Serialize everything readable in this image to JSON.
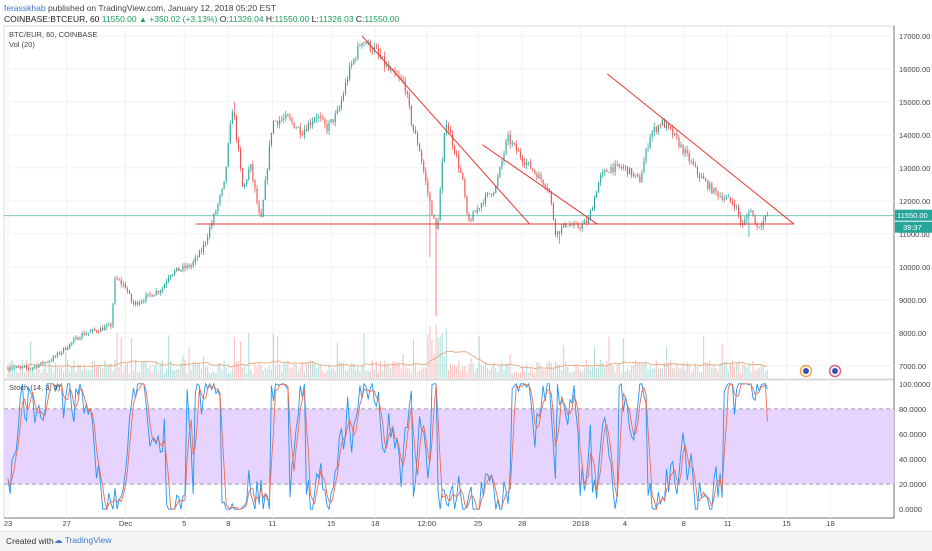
{
  "header": {
    "author": "ferasskhab",
    "published": " published on TradingView.com, January 12, 2018 05:20 EST",
    "symbol_line": "COINBASE:BTCEUR, 60",
    "last": "11550.00",
    "change": "+350.02 (+3.13%)",
    "open_label": "O:",
    "open": "11326.04",
    "high_label": "H:",
    "high": "11550.00",
    "low_label": "L:",
    "low": "11326.03",
    "close_label": "C:",
    "close": "11550.00"
  },
  "pane_labels": {
    "symbol": "BTC/EUR, 60, COINBASE",
    "volume": "Vol (20)",
    "stoch": "Stoch (14, 3, 3)"
  },
  "price_tags": {
    "last": "11550.00",
    "countdown": "39:37"
  },
  "footer": {
    "created_with": "Created with",
    "brand": "TradingView"
  },
  "colors": {
    "up": "#26a69a",
    "down": "#ef5350",
    "trendline": "#e53935",
    "lastline": "#26a69a",
    "stoch_k": "#2196f3",
    "stoch_d": "#ef6c4f",
    "stoch_band": "#e6d3ff",
    "volume_ma": "#e8a87c"
  },
  "chart_data": [
    {
      "type": "candlestick",
      "title": "BTC/EUR, 60, COINBASE",
      "ylim": [
        6600,
        17300
      ],
      "yticks": [
        7000,
        8000,
        9000,
        10000,
        11000,
        12000,
        13000,
        14000,
        15000,
        16000,
        17000
      ],
      "ytick_labels": [
        "7000.00",
        "8000.00",
        "9000.00",
        "10000.00",
        "11000.00",
        "12000.00",
        "13000.00",
        "14000.00",
        "15000.00",
        "16000.00",
        "17000.00"
      ],
      "xtick_labels": [
        "23",
        "27",
        "Dec",
        "5",
        "8",
        "11",
        "15",
        "18",
        "12:00",
        "25",
        "28",
        "2018",
        "4",
        "8",
        "11",
        "15",
        "18"
      ],
      "xticks_day": [
        0,
        4,
        8,
        12,
        15,
        18,
        22,
        25,
        28.5,
        32,
        35,
        39,
        42,
        46,
        49,
        53,
        56
      ],
      "xlim_day": [
        0,
        59.5
      ],
      "last_price": 11550,
      "anchors": [
        [
          0,
          6950
        ],
        [
          1.5,
          6920
        ],
        [
          3,
          7200
        ],
        [
          5,
          7950
        ],
        [
          7,
          8200
        ],
        [
          7.3,
          9650
        ],
        [
          8,
          9400
        ],
        [
          8.5,
          8850
        ],
        [
          10.5,
          9350
        ],
        [
          11,
          9800
        ],
        [
          12.5,
          10050
        ],
        [
          13.2,
          10500
        ],
        [
          14,
          11500
        ],
        [
          14.7,
          12450
        ],
        [
          15.3,
          14900
        ],
        [
          16,
          12300
        ],
        [
          16.5,
          13100
        ],
        [
          17.2,
          11300
        ],
        [
          18,
          14400
        ],
        [
          19,
          14500
        ],
        [
          20,
          14100
        ],
        [
          21,
          14600
        ],
        [
          21.7,
          14200
        ],
        [
          22.5,
          14700
        ],
        [
          23.2,
          15900
        ],
        [
          24.1,
          16900
        ],
        [
          25,
          16550
        ],
        [
          26,
          15900
        ],
        [
          27,
          15550
        ],
        [
          27.5,
          14300
        ],
        [
          28,
          13600
        ],
        [
          28.6,
          12200
        ],
        [
          29.2,
          11000
        ],
        [
          29.8,
          14500
        ],
        [
          30.5,
          13400
        ],
        [
          31,
          12500
        ],
        [
          31.3,
          11300
        ],
        [
          32.3,
          12000
        ],
        [
          33.2,
          12400
        ],
        [
          34,
          13900
        ],
        [
          35,
          13300
        ],
        [
          36,
          12800
        ],
        [
          36.8,
          12400
        ],
        [
          37.3,
          11000
        ],
        [
          38,
          11300
        ],
        [
          38.8,
          11200
        ],
        [
          39.5,
          11400
        ],
        [
          40.3,
          12700
        ],
        [
          41,
          13000
        ],
        [
          42,
          13000
        ],
        [
          43,
          12600
        ],
        [
          43.7,
          14000
        ],
        [
          44.5,
          14400
        ],
        [
          45.3,
          14000
        ],
        [
          46.3,
          13300
        ],
        [
          47,
          12800
        ],
        [
          48,
          12300
        ],
        [
          49.5,
          11900
        ],
        [
          50,
          11200
        ],
        [
          50.5,
          11800
        ],
        [
          51,
          11200
        ],
        [
          51.7,
          11550
        ]
      ],
      "spikes_low": [
        [
          28.7,
          10300
        ],
        [
          29.2,
          8500
        ],
        [
          37.5,
          10700
        ],
        [
          50.4,
          10900
        ]
      ],
      "spikes_high": [
        [
          15.4,
          15000
        ],
        [
          41.2,
          13150
        ]
      ],
      "trendlines": [
        {
          "points": [
            [
              12.8,
              11300
            ],
            [
              53.5,
              11300
            ]
          ]
        },
        {
          "points": [
            [
              24.1,
              17000
            ],
            [
              35.5,
              11300
            ]
          ]
        },
        {
          "points": [
            [
              32.3,
              13700
            ],
            [
              40.1,
              11300
            ]
          ]
        },
        {
          "points": [
            [
              40.8,
              15850
            ],
            [
              53.5,
              11300
            ]
          ]
        }
      ]
    },
    {
      "type": "bar",
      "title": "Vol (20)",
      "note": "volume histogram with 20-period moving average"
    },
    {
      "type": "line",
      "title": "Stoch (14, 3, 3)",
      "ylim": [
        -7,
        103
      ],
      "yticks": [
        0,
        20,
        40,
        60,
        80,
        100
      ],
      "ytick_labels": [
        "0.0000",
        "20.0000",
        "40.0000",
        "60.0000",
        "80.0000",
        "100.0000"
      ],
      "band": [
        20,
        80
      ],
      "series": [
        {
          "values": []
        },
        {
          "values": []
        }
      ]
    }
  ]
}
